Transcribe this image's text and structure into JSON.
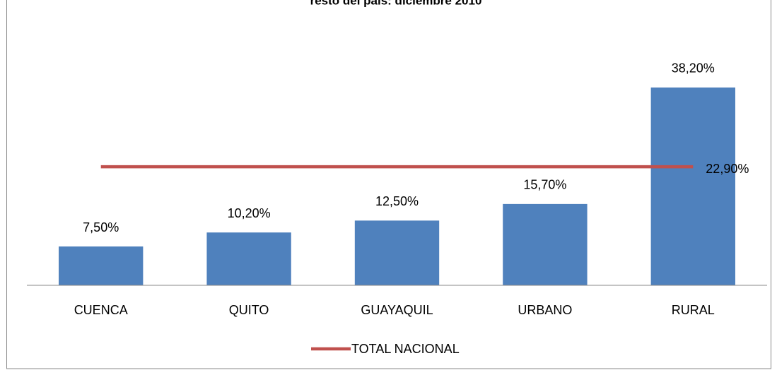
{
  "chart_data": {
    "type": "bar",
    "title": "resto del país: diciembre 2010",
    "categories": [
      "CUENCA",
      "QUITO",
      "GUAYAQUIL",
      "URBANO",
      "RURAL"
    ],
    "values": [
      7.5,
      10.2,
      12.5,
      15.7,
      38.2
    ],
    "value_labels": [
      "7,50%",
      "10,20%",
      "12,50%",
      "15,70%",
      "38,20%"
    ],
    "color": "#4f81bd",
    "ylim": [
      0,
      45
    ],
    "lines": [
      {
        "name": "TOTAL NACIONAL",
        "color": "#c0504d",
        "values": [
          22.9,
          22.9,
          22.9,
          22.9,
          22.9
        ],
        "value_labels": [
          null,
          null,
          null,
          null,
          "22,90%"
        ]
      }
    ],
    "legend": "bottom"
  }
}
